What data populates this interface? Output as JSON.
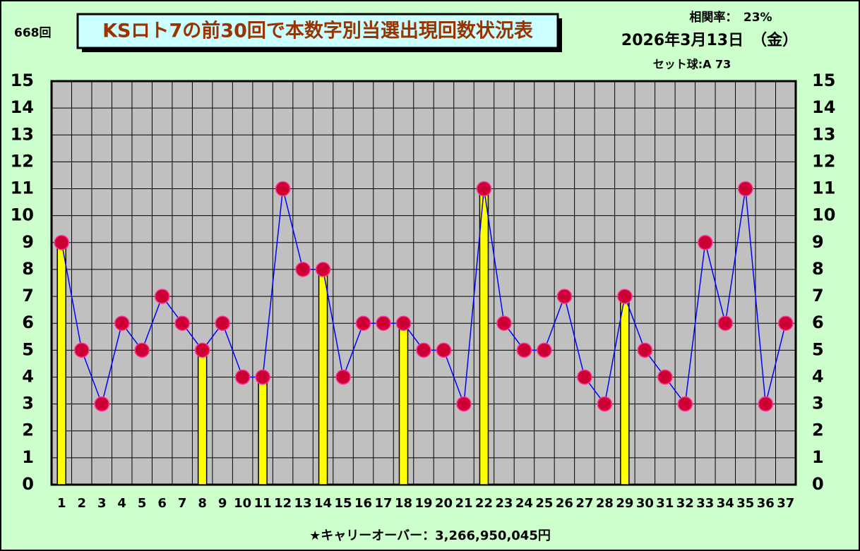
{
  "chart_data": {
    "type": "line",
    "title": "KSロト7の前30回で本数字別当選出現回数状況表",
    "draw_number": "668回",
    "correlation": "相関率：　23%",
    "date": "2026年3月13日　（金）",
    "set_ball": "セット球:A 73",
    "carryover": "★キャリーオーバー：3,266,950,045円",
    "categories": [
      "1",
      "2",
      "3",
      "4",
      "5",
      "6",
      "7",
      "8",
      "9",
      "10",
      "11",
      "12",
      "13",
      "14",
      "15",
      "16",
      "17",
      "18",
      "19",
      "20",
      "21",
      "22",
      "23",
      "24",
      "25",
      "26",
      "27",
      "28",
      "29",
      "30",
      "31",
      "32",
      "33",
      "34",
      "35",
      "36",
      "37"
    ],
    "series": [
      {
        "type": "bar",
        "color": "#ffff00",
        "values": [
          9,
          null,
          null,
          null,
          null,
          null,
          null,
          5,
          null,
          null,
          4,
          null,
          null,
          8,
          null,
          null,
          null,
          6,
          null,
          null,
          null,
          11,
          null,
          null,
          null,
          null,
          null,
          null,
          7,
          null,
          null,
          null,
          null,
          null,
          null,
          null,
          null
        ]
      },
      {
        "type": "line",
        "color": "#0000ff",
        "marker_color": "#cc0033",
        "values": [
          9,
          5,
          3,
          6,
          5,
          7,
          6,
          5,
          6,
          4,
          4,
          11,
          8,
          8,
          4,
          6,
          6,
          6,
          5,
          5,
          3,
          11,
          6,
          5,
          5,
          7,
          4,
          3,
          7,
          5,
          4,
          3,
          9,
          6,
          11,
          3,
          6
        ]
      }
    ],
    "ylim": [
      0,
      15
    ],
    "yticks": [
      0,
      1,
      2,
      3,
      4,
      5,
      6,
      7,
      8,
      9,
      10,
      11,
      12,
      13,
      14,
      15
    ],
    "grid": true,
    "background": "#ccffcc",
    "plot_background": "#c0c0c0"
  }
}
